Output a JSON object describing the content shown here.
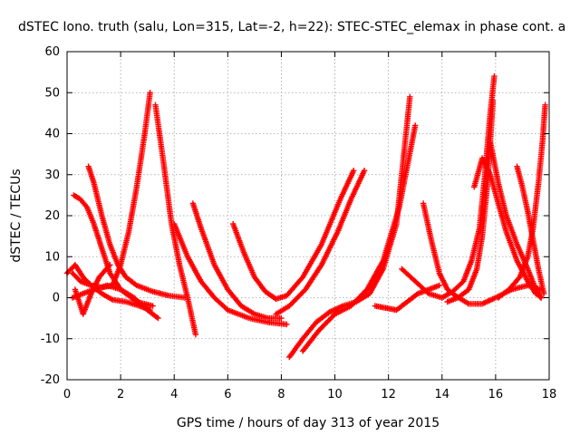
{
  "chart_data": {
    "type": "scatter",
    "title": "dSTEC Iono. truth (salu, Lon=315, Lat=-2, h=22): STEC-STEC_elemax in phase cont. a",
    "xlabel": "GPS time / hours of day 313 of year 2015",
    "ylabel": "dSTEC  / TECUs",
    "xlim": [
      0,
      18
    ],
    "ylim": [
      -20,
      60
    ],
    "xticks": [
      0,
      2,
      4,
      6,
      8,
      10,
      12,
      14,
      16,
      18
    ],
    "yticks": [
      -20,
      -10,
      0,
      10,
      20,
      30,
      40,
      50,
      60
    ],
    "xtick_labels": [
      "0",
      "2",
      "4",
      "6",
      "8",
      "10",
      "12",
      "14",
      "16",
      "18"
    ],
    "ytick_labels": [
      "-20",
      "-10",
      "0",
      "10",
      "20",
      "30",
      "40",
      "50",
      "60"
    ],
    "grid": true,
    "legend": "none",
    "marker": "plus",
    "color": "#ff0000",
    "series": [
      {
        "x": [
          0.2,
          0.5,
          0.9,
          1.3,
          1.7,
          2.0,
          2.3,
          2.6,
          2.9,
          3.1
        ],
        "y": [
          6,
          4,
          3,
          2.5,
          3,
          8,
          16,
          27,
          40,
          50
        ]
      },
      {
        "x": [
          0.0,
          0.3,
          0.6,
          0.9,
          1.3,
          1.7,
          2.2,
          2.7,
          3.1
        ],
        "y": [
          6,
          8,
          5,
          3,
          1,
          -0.5,
          -1,
          -2,
          -3
        ]
      },
      {
        "x": [
          0.2,
          0.6,
          1.0,
          1.5,
          2.0,
          2.5,
          3.0,
          3.4
        ],
        "y": [
          0,
          1,
          2,
          3,
          2,
          0,
          -3,
          -5
        ]
      },
      {
        "x": [
          0.25,
          0.5,
          0.75,
          1.0,
          1.3,
          1.6,
          2.0,
          2.6,
          3.2
        ],
        "y": [
          25,
          24,
          22,
          18,
          12,
          6,
          2,
          -1,
          -2
        ]
      },
      {
        "x": [
          0.8,
          1.0,
          1.3,
          1.6,
          1.9,
          2.2,
          2.6,
          3.2,
          3.8,
          4.4
        ],
        "y": [
          32,
          28,
          20,
          13,
          8,
          5,
          3,
          1.5,
          0.5,
          0
        ]
      },
      {
        "x": [
          0.3,
          0.6,
          0.9,
          1.2,
          1.6
        ],
        "y": [
          2,
          -4,
          1,
          5,
          8
        ]
      },
      {
        "x": [
          3.3,
          3.6,
          3.9,
          4.2,
          4.5,
          4.7,
          4.8
        ],
        "y": [
          47,
          33,
          18,
          8,
          0,
          -6,
          -9
        ]
      },
      {
        "x": [
          4.0,
          4.5,
          5.0,
          5.5,
          6.0,
          6.8,
          7.5,
          8.2
        ],
        "y": [
          18,
          10,
          4,
          0,
          -3,
          -5,
          -6,
          -6.5
        ]
      },
      {
        "x": [
          4.7,
          5.0,
          5.5,
          6.0,
          6.5,
          7.0,
          7.5,
          8.0
        ],
        "y": [
          23,
          17,
          8,
          2,
          -2,
          -4,
          -5,
          -5
        ]
      },
      {
        "x": [
          6.2,
          6.6,
          7.0,
          7.4,
          7.8,
          8.2,
          8.8,
          9.5,
          10.2,
          10.7
        ],
        "y": [
          18,
          11,
          5,
          1.5,
          -0.3,
          0.5,
          5,
          13,
          24,
          31
        ]
      },
      {
        "x": [
          7.8,
          8.3,
          8.9,
          9.5,
          10.1,
          10.6,
          11.1
        ],
        "y": [
          -4,
          -2,
          2,
          8,
          16,
          24,
          31
        ]
      },
      {
        "x": [
          8.3,
          8.8,
          9.3,
          9.8,
          10.3,
          10.8,
          11.3,
          11.8,
          12.3,
          12.8
        ],
        "y": [
          -14.5,
          -10,
          -6,
          -3.5,
          -2,
          -1,
          1,
          7,
          18,
          49
        ]
      },
      {
        "x": [
          8.8,
          9.4,
          10.0,
          10.6,
          11.2,
          11.8,
          12.4,
          13.0
        ],
        "y": [
          -13,
          -8,
          -4,
          -2,
          2,
          9,
          22,
          42
        ]
      },
      {
        "x": [
          11.5,
          11.9,
          12.3,
          12.7,
          13.1,
          13.5,
          13.9
        ],
        "y": [
          -2,
          -2.5,
          -3,
          -1,
          1,
          2,
          3
        ]
      },
      {
        "x": [
          12.5,
          13.0,
          13.5,
          14.0
        ],
        "y": [
          7,
          4,
          1,
          0
        ]
      },
      {
        "x": [
          13.3,
          13.6,
          13.9,
          14.2,
          14.5,
          15.0,
          15.5,
          16.0,
          16.6,
          17.2,
          17.7
        ],
        "y": [
          23,
          14,
          6,
          2,
          0.5,
          -1.5,
          -1.5,
          0,
          2,
          3,
          2
        ]
      },
      {
        "x": [
          14.0,
          14.4,
          14.8,
          15.1,
          15.4,
          15.6,
          15.8,
          15.95
        ],
        "y": [
          0,
          1.5,
          4,
          9,
          17,
          30,
          45,
          54
        ]
      },
      {
        "x": [
          14.2,
          14.6,
          15.0,
          15.3,
          15.5,
          15.7,
          15.9
        ],
        "y": [
          -1,
          0,
          2,
          7,
          15,
          28,
          48
        ]
      },
      {
        "x": [
          15.2,
          15.5,
          15.8,
          16.1,
          16.4,
          16.8,
          17.2,
          17.5,
          17.7
        ],
        "y": [
          27,
          34,
          30,
          23,
          16,
          9,
          4,
          1,
          0
        ]
      },
      {
        "x": [
          15.8,
          16.1,
          16.4,
          16.8,
          17.2,
          17.5,
          17.7
        ],
        "y": [
          38,
          28,
          20,
          13,
          7,
          2,
          0
        ]
      },
      {
        "x": [
          16.8,
          17.0,
          17.2,
          17.4,
          17.6,
          17.8
        ],
        "y": [
          32,
          27,
          21,
          14,
          7,
          1
        ]
      },
      {
        "x": [
          16.1,
          16.5,
          16.9,
          17.2,
          17.4,
          17.6,
          17.75,
          17.85
        ],
        "y": [
          0,
          2,
          5,
          10,
          17,
          28,
          38,
          47
        ]
      }
    ]
  }
}
